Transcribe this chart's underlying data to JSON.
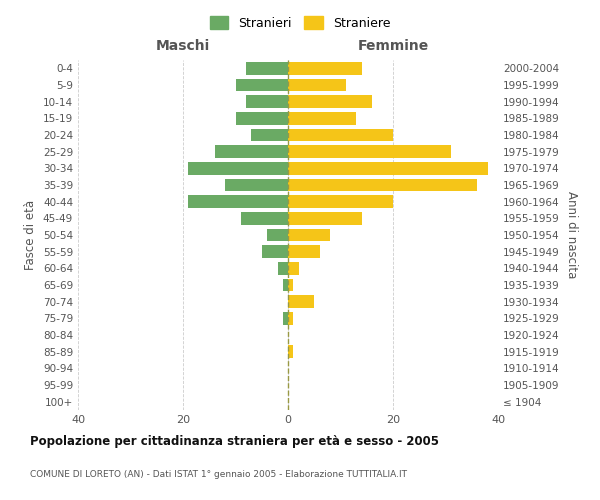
{
  "age_groups": [
    "100+",
    "95-99",
    "90-94",
    "85-89",
    "80-84",
    "75-79",
    "70-74",
    "65-69",
    "60-64",
    "55-59",
    "50-54",
    "45-49",
    "40-44",
    "35-39",
    "30-34",
    "25-29",
    "20-24",
    "15-19",
    "10-14",
    "5-9",
    "0-4"
  ],
  "birth_years": [
    "≤ 1904",
    "1905-1909",
    "1910-1914",
    "1915-1919",
    "1920-1924",
    "1925-1929",
    "1930-1934",
    "1935-1939",
    "1940-1944",
    "1945-1949",
    "1950-1954",
    "1955-1959",
    "1960-1964",
    "1965-1969",
    "1970-1974",
    "1975-1979",
    "1980-1984",
    "1985-1989",
    "1990-1994",
    "1995-1999",
    "2000-2004"
  ],
  "maschi": [
    0,
    0,
    0,
    0,
    0,
    1,
    0,
    1,
    2,
    5,
    4,
    9,
    19,
    12,
    19,
    14,
    7,
    10,
    8,
    10,
    8
  ],
  "femmine": [
    0,
    0,
    0,
    1,
    0,
    1,
    5,
    1,
    2,
    6,
    8,
    14,
    20,
    36,
    38,
    31,
    20,
    13,
    16,
    11,
    14
  ],
  "maschi_color": "#6aaa64",
  "femmine_color": "#f5c518",
  "background_color": "#ffffff",
  "grid_color": "#cccccc",
  "title": "Popolazione per cittadinanza straniera per età e sesso - 2005",
  "subtitle": "COMUNE DI LORETO (AN) - Dati ISTAT 1° gennaio 2005 - Elaborazione TUTTITALIA.IT",
  "label_maschi": "Maschi",
  "label_femmine": "Femmine",
  "ylabel_left": "Fasce di età",
  "ylabel_right": "Anni di nascita",
  "legend_maschi": "Stranieri",
  "legend_femmine": "Straniere",
  "xlim": 40,
  "bar_height": 0.75
}
